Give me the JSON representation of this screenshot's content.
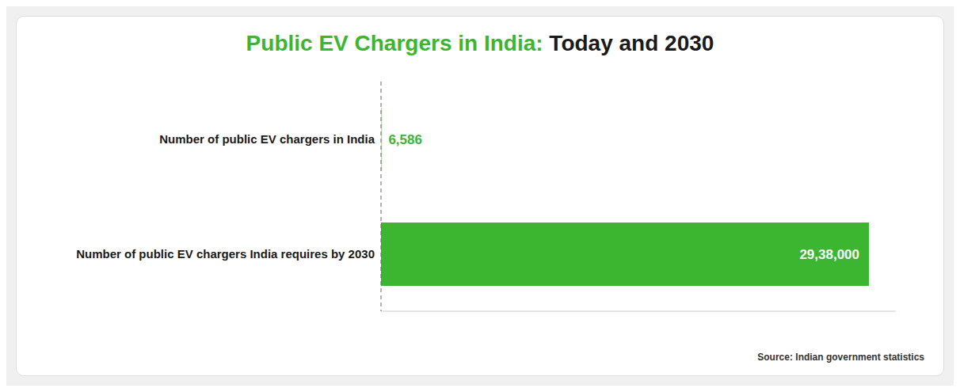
{
  "chart_data": {
    "type": "bar",
    "orientation": "horizontal",
    "title": "Public EV Chargers in India: Today and 2030",
    "categories": [
      "Number of public EV chargers in India",
      "Number of public EV chargers India requires by 2030"
    ],
    "values": [
      6586,
      2938000
    ],
    "value_labels": [
      "6,586",
      "29,38,000"
    ],
    "colors": [
      "#b2e8a0",
      "#3cb531"
    ],
    "data_labels": true,
    "xlim": [
      0,
      3100000
    ],
    "tick_labels": false,
    "grid": false,
    "annotations": [
      "Source: Indian government statistics"
    ]
  }
}
